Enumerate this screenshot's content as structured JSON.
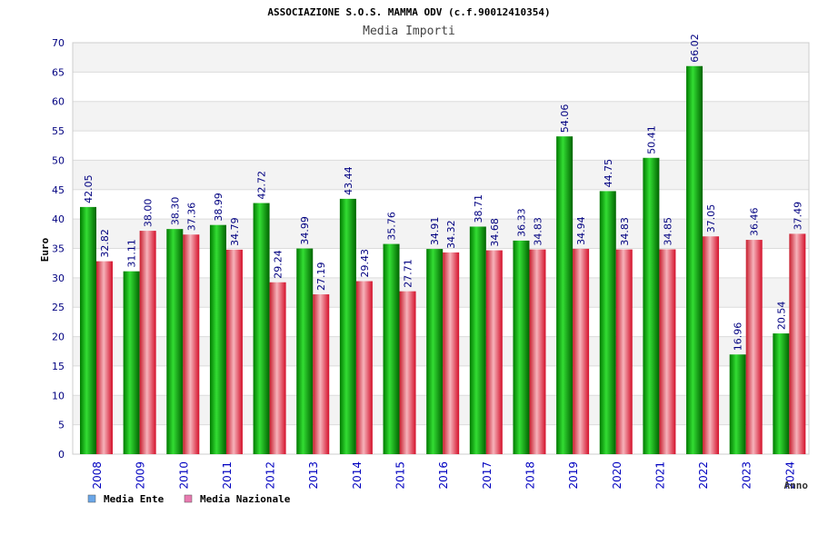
{
  "chart_data": {
    "type": "bar",
    "title": "ASSOCIAZIONE S.O.S. MAMMA ODV (c.f.90012410354)",
    "subtitle": "Media Importi",
    "xlabel": "Anno",
    "ylabel": "Euro",
    "ylim": [
      0,
      70
    ],
    "yticks": [
      0,
      5,
      10,
      15,
      20,
      25,
      30,
      35,
      40,
      45,
      50,
      55,
      60,
      65,
      70
    ],
    "categories": [
      "2008",
      "2009",
      "2010",
      "2011",
      "2012",
      "2013",
      "2014",
      "2015",
      "2016",
      "2017",
      "2018",
      "2019",
      "2020",
      "2021",
      "2022",
      "2023",
      "2024"
    ],
    "series": [
      {
        "name": "Media Ente",
        "color": "#00b000",
        "values": [
          42.05,
          31.11,
          38.3,
          38.99,
          42.72,
          34.99,
          43.44,
          35.76,
          34.91,
          38.71,
          36.33,
          54.06,
          44.75,
          50.41,
          66.02,
          16.96,
          20.54
        ],
        "labels": [
          "42.05",
          "31.11",
          "38.30",
          "38.99",
          "42.72",
          "34.99",
          "43.44",
          "35.76",
          "34.91",
          "38.71",
          "36.33",
          "54.06",
          "44.75",
          "50.41",
          "66.02",
          "16.96",
          "20.54"
        ]
      },
      {
        "name": "Media Nazionale",
        "color": "#e8283c",
        "values": [
          32.82,
          38.0,
          37.36,
          34.79,
          29.24,
          27.19,
          29.43,
          27.71,
          34.32,
          34.68,
          34.83,
          34.94,
          34.83,
          34.85,
          37.05,
          36.46,
          37.49
        ],
        "labels": [
          "32.82",
          "38.00",
          "37.36",
          "34.79",
          "29.24",
          "27.19",
          "29.43",
          "27.71",
          "34.32",
          "34.68",
          "34.83",
          "34.94",
          "34.83",
          "34.85",
          "37.05",
          "36.46",
          "37.49"
        ]
      }
    ],
    "legend": {
      "placement": "bottom-left",
      "items": [
        {
          "label": "Media Ente",
          "color": "#6aa6e8"
        },
        {
          "label": "Media Nazionale",
          "color": "#e87ab0"
        }
      ]
    },
    "grid": true
  }
}
